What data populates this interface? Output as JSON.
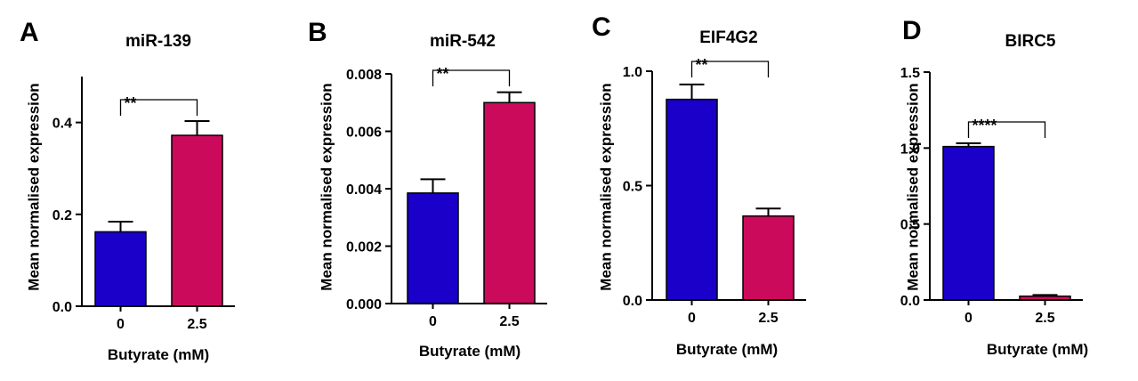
{
  "chart_data": [
    {
      "panel": "A",
      "type": "bar",
      "title": "miR-139",
      "xlabel": "Butyrate (mM)",
      "ylabel": "Mean normalised expression",
      "categories": [
        "0",
        "2.5"
      ],
      "values": [
        0.162,
        0.372
      ],
      "errors": [
        0.022,
        0.031
      ],
      "colors": [
        "#1a00c8",
        "#cc0a5c"
      ],
      "ylim": [
        0,
        0.5
      ],
      "yticks": [
        0.0,
        0.2,
        0.4
      ],
      "ytick_labels": [
        "0.0",
        "0.2",
        "0.4"
      ],
      "significance": "**",
      "grid": false
    },
    {
      "panel": "B",
      "type": "bar",
      "title": "miR-542",
      "xlabel": "Butyrate (mM)",
      "ylabel": "Mean normalised expression",
      "categories": [
        "0",
        "2.5"
      ],
      "values": [
        0.00385,
        0.007
      ],
      "errors": [
        0.00048,
        0.00036
      ],
      "colors": [
        "#1a00c8",
        "#cc0a5c"
      ],
      "ylim": [
        0,
        0.008
      ],
      "yticks": [
        0.0,
        0.002,
        0.004,
        0.006,
        0.008
      ],
      "ytick_labels": [
        "0.000",
        "0.002",
        "0.004",
        "0.006",
        "0.008"
      ],
      "significance": "**",
      "grid": false
    },
    {
      "panel": "C",
      "type": "bar",
      "title": "EIF4G2",
      "xlabel": "Butyrate (mM)",
      "ylabel": "Mean normalised expression",
      "categories": [
        "0",
        "2.5"
      ],
      "values": [
        0.877,
        0.367
      ],
      "errors": [
        0.065,
        0.033
      ],
      "colors": [
        "#1a00c8",
        "#cc0a5c"
      ],
      "ylim": [
        0,
        1.0
      ],
      "yticks": [
        0.0,
        0.5,
        1.0
      ],
      "ytick_labels": [
        "0.0",
        "0.5",
        "1.0"
      ],
      "significance": "**",
      "grid": false
    },
    {
      "panel": "D",
      "type": "bar",
      "title": "BIRC5",
      "xlabel": "Butyrate (mM)",
      "ylabel": "Mean normalised expression",
      "categories": [
        "0",
        "2.5"
      ],
      "values": [
        1.01,
        0.025
      ],
      "errors": [
        0.022,
        0.008
      ],
      "colors": [
        "#1a00c8",
        "#cc0a5c"
      ],
      "ylim": [
        0,
        1.5
      ],
      "yticks": [
        0.0,
        0.5,
        1.0,
        1.5
      ],
      "ytick_labels": [
        "0.0",
        "0.5",
        "1.0",
        "1.5"
      ],
      "significance": "****",
      "grid": false
    }
  ]
}
